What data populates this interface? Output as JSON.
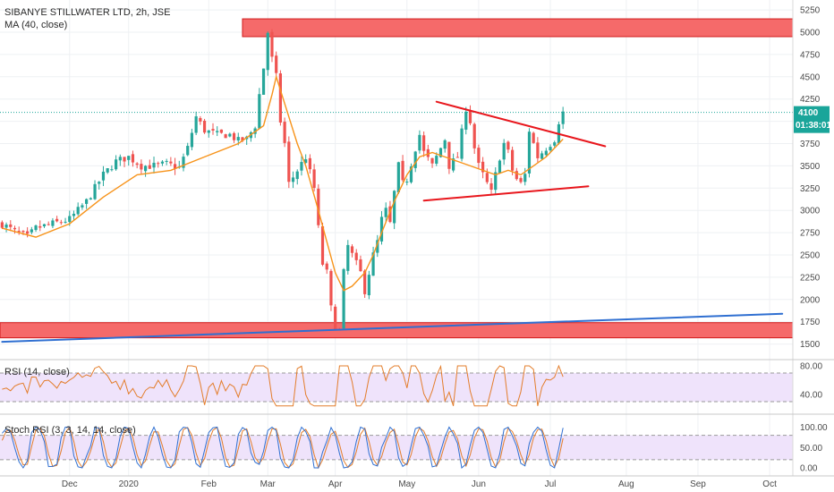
{
  "header": {
    "title": "SIBANYE STILLWATER LTD, 2h, JSE",
    "ma_label": "MA (40, close)"
  },
  "price_badge": {
    "value": "4100",
    "countdown": "01:38:01"
  },
  "colors": {
    "candle_up": "#26a69a",
    "candle_down": "#ef5350",
    "ma": "#f7931a",
    "trend_red": "#e8161c",
    "trend_blue": "#2f6fd1",
    "zone_fill": "#f56a6a",
    "zone_border": "#d01b1b",
    "rsi_line": "#e37d2b",
    "stoch_k": "#2f6fd1",
    "stoch_d": "#e37d2b",
    "osc_band": "#efe3fb",
    "badge": "#1aa59a"
  },
  "chart_data": [
    {
      "type": "candlestick",
      "title": "SIBANYE STILLWATER LTD, 2h, JSE",
      "y_ticks": [
        "5250",
        "5000",
        "4750",
        "4500",
        "4250",
        "4000",
        "3750",
        "3500",
        "3250",
        "3000",
        "2750",
        "2500",
        "2250",
        "2000",
        "1750",
        "1500"
      ],
      "ylim": [
        1400,
        5300
      ],
      "x_ticks": [
        "Dec",
        "2020",
        "Feb",
        "Mar",
        "Apr",
        "May",
        "Jun",
        "Jul",
        "Aug",
        "Sep",
        "Oct"
      ],
      "close_path": [
        [
          0,
          2850
        ],
        [
          3,
          2760
        ],
        [
          6,
          2700
        ],
        [
          8,
          2800
        ],
        [
          12,
          2850
        ],
        [
          16,
          2900
        ],
        [
          20,
          3100
        ],
        [
          24,
          3400
        ],
        [
          27,
          3550
        ],
        [
          30,
          3600
        ],
        [
          33,
          3500
        ],
        [
          36,
          3500
        ],
        [
          39,
          3520
        ],
        [
          42,
          3480
        ],
        [
          44,
          3700
        ],
        [
          46,
          4050
        ],
        [
          48,
          3900
        ],
        [
          51,
          3850
        ],
        [
          54,
          3850
        ],
        [
          56,
          3780
        ],
        [
          58,
          3800
        ],
        [
          60,
          3950
        ],
        [
          61,
          4300
        ],
        [
          62,
          4600
        ],
        [
          63,
          5000
        ],
        [
          64,
          4700
        ],
        [
          65,
          4500
        ],
        [
          66,
          4000
        ],
        [
          67,
          3750
        ],
        [
          68,
          3300
        ],
        [
          70,
          3450
        ],
        [
          72,
          3600
        ],
        [
          74,
          3250
        ],
        [
          75,
          2800
        ],
        [
          76,
          2400
        ],
        [
          77,
          2300
        ],
        [
          78,
          1900
        ],
        [
          79,
          1700
        ],
        [
          80,
          1650
        ],
        [
          81,
          2300
        ],
        [
          82,
          2600
        ],
        [
          83,
          2500
        ],
        [
          85,
          2300
        ],
        [
          86,
          2100
        ],
        [
          88,
          2500
        ],
        [
          89,
          2650
        ],
        [
          90,
          2900
        ],
        [
          91,
          3000
        ],
        [
          92,
          2850
        ],
        [
          93,
          3200
        ],
        [
          94,
          3500
        ],
        [
          95,
          3300
        ],
        [
          96,
          3350
        ],
        [
          98,
          3700
        ],
        [
          99,
          3850
        ],
        [
          100,
          3650
        ],
        [
          102,
          3500
        ],
        [
          104,
          3700
        ],
        [
          105,
          3800
        ],
        [
          106,
          3500
        ],
        [
          108,
          3600
        ],
        [
          110,
          4150
        ],
        [
          111,
          4000
        ],
        [
          112,
          3700
        ],
        [
          113,
          3500
        ],
        [
          115,
          3300
        ],
        [
          116,
          3200
        ],
        [
          117,
          3400
        ],
        [
          118,
          3600
        ],
        [
          119,
          3750
        ],
        [
          120,
          3650
        ],
        [
          121,
          3450
        ],
        [
          122,
          3350
        ],
        [
          123,
          3300
        ],
        [
          124,
          3400
        ],
        [
          125,
          3900
        ],
        [
          126,
          3750
        ],
        [
          127,
          3600
        ],
        [
          129,
          3700
        ],
        [
          131,
          3800
        ],
        [
          132,
          4000
        ],
        [
          133,
          4100
        ]
      ],
      "ma_path": [
        [
          0,
          2800
        ],
        [
          8,
          2700
        ],
        [
          16,
          2850
        ],
        [
          24,
          3150
        ],
        [
          32,
          3400
        ],
        [
          40,
          3450
        ],
        [
          48,
          3600
        ],
        [
          56,
          3750
        ],
        [
          62,
          3950
        ],
        [
          64,
          4300
        ],
        [
          65,
          4500
        ],
        [
          67,
          4200
        ],
        [
          70,
          3750
        ],
        [
          72,
          3500
        ],
        [
          75,
          3000
        ],
        [
          77,
          2650
        ],
        [
          79,
          2300
        ],
        [
          81,
          2100
        ],
        [
          83,
          2150
        ],
        [
          86,
          2300
        ],
        [
          88,
          2500
        ],
        [
          90,
          2750
        ],
        [
          93,
          3100
        ],
        [
          96,
          3400
        ],
        [
          99,
          3600
        ],
        [
          102,
          3650
        ],
        [
          105,
          3600
        ],
        [
          108,
          3550
        ],
        [
          111,
          3500
        ],
        [
          114,
          3450
        ],
        [
          117,
          3400
        ],
        [
          120,
          3450
        ],
        [
          123,
          3400
        ],
        [
          126,
          3500
        ],
        [
          129,
          3600
        ],
        [
          131,
          3700
        ],
        [
          133,
          3800
        ]
      ],
      "annotations": {
        "resistance_zone": [
          4950,
          5150
        ],
        "support_zone": [
          1570,
          1740
        ],
        "triangle_upper": [
          [
            103,
            4220
          ],
          [
            143,
            3720
          ]
        ],
        "triangle_lower": [
          [
            100,
            3110
          ],
          [
            139,
            3270
          ]
        ],
        "long_trendline": [
          [
            0,
            1525
          ],
          [
            185,
            1840
          ]
        ],
        "last_price_line": 4100
      }
    },
    {
      "type": "line",
      "title": "RSI (14, close)",
      "y_ticks": [
        "80.00",
        "40.00"
      ],
      "ylim": [
        20,
        90
      ],
      "bands": [
        70,
        30
      ],
      "last_x": 133
    },
    {
      "type": "line",
      "title": "Stoch RSI (3, 3, 14, 14, close)",
      "y_ticks": [
        "100.00",
        "50.00",
        "0.00"
      ],
      "ylim": [
        -5,
        105
      ],
      "bands": [
        80,
        20
      ],
      "last_x": 133
    }
  ]
}
